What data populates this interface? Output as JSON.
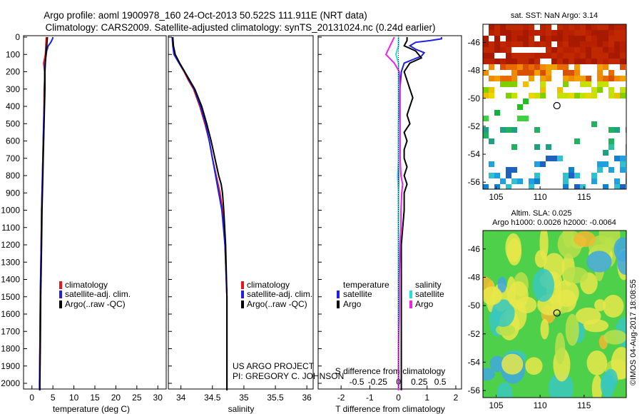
{
  "header": {
    "title_line1": "Argo profile: aoml 1900978_160 24-Oct-2013 50.522S 111.911E (NRT data)",
    "title_line2": "Climatology: CARS2009. Satellite-adjusted climatology: synTS_20131024.nc (0.24d earlier)"
  },
  "colors": {
    "climatology": "#e8141e",
    "satellite": "#1f1fe6",
    "argo": "#000000",
    "sat_salinity": "#22e0e0",
    "argo_salinity": "#ee22ee"
  },
  "depth_axis": {
    "range": [
      0,
      2050
    ],
    "ticks": [
      "0",
      "100",
      "200",
      "300",
      "400",
      "500",
      "600",
      "700",
      "800",
      "900",
      "1000",
      "1100",
      "1200",
      "1300",
      "1400",
      "1500",
      "1600",
      "1700",
      "1800",
      "1900",
      "2000"
    ]
  },
  "chart_data": [
    {
      "type": "line",
      "panel": "temperature",
      "xlabel": "temperature (deg C)",
      "xlim": [
        -2,
        32
      ],
      "xticks": [
        "0",
        "5",
        "10",
        "15",
        "20",
        "25",
        "30"
      ],
      "legend": [
        "climatology",
        "satellite-adj. clim.",
        "Argo(..raw -QC)"
      ],
      "series": [
        {
          "name": "climatology",
          "depth": [
            0,
            50,
            100,
            150,
            200,
            250,
            300,
            400,
            500,
            600,
            700,
            800,
            1000,
            1200,
            1500,
            1800,
            2000,
            2040
          ],
          "values": [
            3.4,
            3.3,
            3.2,
            2.8,
            3.0,
            3.0,
            2.9,
            2.9,
            2.8,
            2.7,
            2.6,
            2.5,
            2.3,
            2.2,
            2.0,
            1.9,
            1.8,
            1.8
          ]
        },
        {
          "name": "satellite-adj. clim.",
          "depth": [
            0,
            10,
            30,
            50,
            80,
            120,
            160,
            200,
            300,
            400,
            500,
            600,
            800,
            1000,
            1200,
            1500,
            1800,
            2000,
            2040
          ],
          "values": [
            5.0,
            4.9,
            4.5,
            3.9,
            3.5,
            3.3,
            3.1,
            3.1,
            3.0,
            2.9,
            2.8,
            2.7,
            2.5,
            2.3,
            2.2,
            2.0,
            1.9,
            1.8,
            1.8
          ]
        },
        {
          "name": "Argo(..raw -QC)",
          "depth": [
            0,
            30,
            60,
            100,
            150,
            200,
            300,
            400,
            500,
            600,
            700,
            800,
            1000,
            1200,
            1500,
            1800,
            2000,
            2040
          ],
          "values": [
            3.7,
            3.6,
            3.5,
            3.3,
            3.2,
            3.1,
            3.1,
            3.0,
            2.9,
            2.8,
            2.7,
            2.6,
            2.4,
            2.3,
            2.1,
            2.0,
            1.9,
            1.9
          ]
        }
      ]
    },
    {
      "type": "line",
      "panel": "salinity",
      "xlabel": "salinity",
      "xlim": [
        33.8,
        36.1
      ],
      "xticks": [
        "34",
        "34.5",
        "35",
        "35.5",
        "36"
      ],
      "legend": [
        "climatology",
        "satellite-adj. clim.",
        "Argo(..raw -QC)"
      ],
      "annotation": [
        "US ARGO PROJECT",
        "PI: GREGORY C. JOHNSON"
      ],
      "series": [
        {
          "name": "climatology",
          "depth": [
            0,
            50,
            100,
            150,
            200,
            250,
            300,
            400,
            500,
            600,
            700,
            800,
            900,
            1000,
            1200,
            1500,
            1800,
            2000,
            2040
          ],
          "values": [
            33.87,
            33.88,
            33.9,
            33.97,
            34.05,
            34.12,
            34.2,
            34.3,
            34.38,
            34.45,
            34.5,
            34.56,
            34.62,
            34.66,
            34.7,
            34.73,
            34.73,
            34.73,
            34.73
          ]
        },
        {
          "name": "satellite-adj. clim.",
          "depth": [
            0,
            50,
            100,
            150,
            200,
            250,
            300,
            400,
            500,
            600,
            700,
            800,
            900,
            1000,
            1200,
            1500,
            1800,
            2000,
            2040
          ],
          "values": [
            33.86,
            33.87,
            33.89,
            33.97,
            34.06,
            34.13,
            34.21,
            34.31,
            34.39,
            34.45,
            34.5,
            34.55,
            34.6,
            34.65,
            34.7,
            34.73,
            34.73,
            34.73,
            34.73
          ]
        },
        {
          "name": "Argo(..raw -QC)",
          "depth": [
            0,
            50,
            100,
            150,
            200,
            250,
            300,
            400,
            500,
            600,
            700,
            800,
            850,
            900,
            1000,
            1200,
            1500,
            1800,
            2000,
            2040
          ],
          "values": [
            33.87,
            33.88,
            33.91,
            33.98,
            34.06,
            34.14,
            34.22,
            34.33,
            34.41,
            34.48,
            34.54,
            34.6,
            34.64,
            34.66,
            34.68,
            34.71,
            34.73,
            34.73,
            34.73,
            34.73
          ]
        }
      ]
    },
    {
      "type": "line",
      "panel": "difference",
      "xlabel": "T difference from climatology",
      "top_label": "S difference from climatology",
      "xlim": [
        -2.8,
        2.2
      ],
      "xticks": [
        "-2",
        "-1",
        "0",
        "1",
        "2"
      ],
      "top_ticks": [
        "-0.5",
        "-0.25",
        "0",
        "0.25",
        "0.5"
      ],
      "legend_temperature": {
        "heading": "temperature",
        "items": [
          "satellite",
          "Argo"
        ]
      },
      "legend_salinity": {
        "heading": "salinity",
        "items": [
          "satellite",
          "Argo"
        ]
      },
      "series": [
        {
          "name": "temperature satellite",
          "depth": [
            0,
            10,
            20,
            30,
            50,
            70,
            90,
            110,
            130,
            150,
            200,
            300,
            500,
            800,
            1200,
            1600,
            2040
          ],
          "values": [
            1.5,
            1.5,
            1.1,
            0.6,
            0.4,
            0.6,
            0.9,
            0.8,
            0.5,
            0.2,
            0.1,
            0.05,
            0.0,
            0.0,
            0.0,
            0.0,
            0.0
          ]
        },
        {
          "name": "temperature Argo",
          "depth": [
            0,
            20,
            50,
            80,
            100,
            120,
            150,
            200,
            250,
            300,
            350,
            400,
            450,
            500,
            550,
            600,
            650,
            700,
            750,
            800,
            850,
            900,
            1000,
            1200,
            1500,
            1800,
            2040
          ],
          "values": [
            0.3,
            0.3,
            0.2,
            0.6,
            0.7,
            0.8,
            0.4,
            0.2,
            0.3,
            0.4,
            0.5,
            0.4,
            0.3,
            0.4,
            0.2,
            0.3,
            0.2,
            0.2,
            0.3,
            0.2,
            0.3,
            0.2,
            0.2,
            0.1,
            0.1,
            0.1,
            0.1
          ]
        },
        {
          "name": "salinity satellite",
          "depth": [
            0,
            50,
            100,
            150,
            200,
            300,
            400,
            500,
            600,
            700,
            800,
            900,
            1000,
            1200,
            1400,
            1600,
            1800,
            2040
          ],
          "values": [
            0.0,
            0.0,
            -0.03,
            0.0,
            0.0,
            0.0,
            0.0,
            0.0,
            0.0,
            0.0,
            -0.01,
            0.0,
            0.0,
            0.0,
            0.0,
            0.0,
            0.0,
            0.0
          ]
        },
        {
          "name": "salinity Argo",
          "depth": [
            0,
            50,
            100,
            150,
            200,
            300,
            400,
            500,
            600,
            700,
            800,
            850,
            900,
            1000,
            1100,
            1200,
            1400,
            1600,
            1800,
            2040
          ],
          "values": [
            -0.05,
            -0.1,
            -0.15,
            -0.05,
            0.01,
            0.02,
            0.02,
            0.02,
            0.02,
            0.02,
            0.03,
            0.05,
            0.04,
            0.03,
            0.03,
            0.02,
            0.01,
            0.01,
            0.0,
            0.0
          ]
        }
      ]
    },
    {
      "type": "heatmap",
      "panel": "sst_map",
      "title": "sat. SST: NaN Argo: 3.14",
      "xticks": [
        "105",
        "110",
        "115"
      ],
      "yticks": [
        "-46",
        "-48",
        "-50",
        "-52",
        "-54",
        "-56"
      ],
      "xlim": [
        103.5,
        119.8
      ],
      "ylim": [
        -56.5,
        -44.7
      ],
      "argo_position": {
        "lon": 111.911,
        "lat": -50.522
      }
    },
    {
      "type": "heatmap",
      "panel": "sla_map",
      "title_line1": "Altim. SLA: 0.025",
      "title_line2": "Argo h1000: 0.0026 h2000: -0.0064",
      "xticks": [
        "105",
        "110",
        "115"
      ],
      "yticks": [
        "-46",
        "-48",
        "-50",
        "-52",
        "-54",
        "-56"
      ],
      "xlim": [
        103.5,
        119.8
      ],
      "ylim": [
        -56.5,
        -44.7
      ],
      "argo_position": {
        "lon": 111.911,
        "lat": -50.522
      }
    }
  ],
  "footer": {
    "credit": "©IMOS 04-Aug-2017 18:08:55"
  }
}
